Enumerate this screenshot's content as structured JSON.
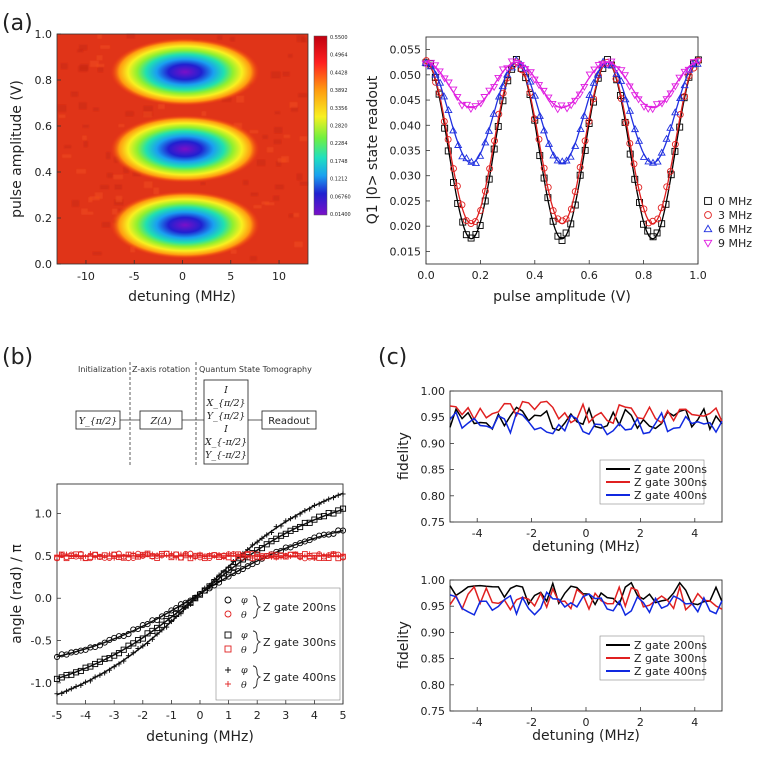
{
  "panel_labels": {
    "a": "(a)",
    "b": "(b)",
    "c": "(c)"
  },
  "colorbar_ticks": [
    "0.5500",
    "0.4964",
    "0.4428",
    "0.3892",
    "0.3356",
    "0.2820",
    "0.2284",
    "0.1748",
    "0.1212",
    "0.06760",
    "0.01400"
  ],
  "circuit": {
    "stage_labels": [
      "Initialization",
      "Z-axis rotation",
      "Quantum State Tomography"
    ],
    "init_gate": "Y_{π/2}",
    "z_gate": "Z(Δ)",
    "tomo_ops": [
      "I",
      "X_{π/2}",
      "Y_{π/2}",
      "I",
      "X_{-π/2}",
      "Y_{-π/2}"
    ],
    "readout": "Readout"
  },
  "chart_data": [
    {
      "id": "a-left",
      "type": "heatmap",
      "xlabel": "detuning (MHz)",
      "ylabel": "pulse amplitude (V)",
      "xlim": [
        -13,
        13
      ],
      "ylim": [
        0,
        1
      ],
      "xticks": [
        "-10",
        "-5",
        "0",
        "5",
        "10"
      ],
      "yticks": [
        "0.0",
        "0.2",
        "0.4",
        "0.6",
        "0.8",
        "1.0"
      ],
      "color_range": [
        0.014,
        0.55
      ],
      "minima": [
        {
          "x": 0,
          "y": 0.167,
          "value": 0.014
        },
        {
          "x": 0,
          "y": 0.5,
          "value": 0.014
        },
        {
          "x": 0,
          "y": 0.833,
          "value": 0.014
        }
      ]
    },
    {
      "id": "a-right",
      "type": "scatter",
      "xlabel": "pulse amplitude (V)",
      "ylabel": "Q1 |0> state readout",
      "xlim": [
        0,
        1
      ],
      "ylim": [
        0.0125,
        0.0575
      ],
      "xticks": [
        "0.0",
        "0.2",
        "0.4",
        "0.6",
        "0.8",
        "1.0"
      ],
      "yticks": [
        "0.015",
        "0.020",
        "0.025",
        "0.030",
        "0.035",
        "0.040",
        "0.045",
        "0.050",
        "0.055"
      ],
      "legend": "right",
      "series": [
        {
          "name": "0 MHz",
          "marker": "square",
          "color": "#000000",
          "max": 0.0525,
          "min": 0.0175
        },
        {
          "name": "3 MHz",
          "marker": "circle",
          "color": "#e02020",
          "max": 0.0525,
          "min": 0.0205
        },
        {
          "name": "6 MHz",
          "marker": "triangle-up",
          "color": "#2030e0",
          "max": 0.0525,
          "min": 0.0325
        },
        {
          "name": "9 MHz",
          "marker": "triangle-down",
          "color": "#e020e0",
          "max": 0.0525,
          "min": 0.0435
        }
      ]
    },
    {
      "id": "b",
      "type": "line",
      "xlabel": "detuning (MHz)",
      "ylabel": "angle (rad) / π",
      "xlim": [
        -5,
        5
      ],
      "ylim": [
        -1.25,
        1.35
      ],
      "xticks": [
        "-5",
        "-4",
        "-3",
        "-2",
        "-1",
        "0",
        "1",
        "2",
        "3",
        "4",
        "5"
      ],
      "yticks": [
        "-1.0",
        "-0.5",
        "0.0",
        "0.5",
        "1.0"
      ],
      "series": [
        {
          "name": "φ",
          "gate": "Z gate 200ns",
          "marker": "circle",
          "color": "#000000",
          "endpoint": 0.8,
          "start": -0.69
        },
        {
          "name": "θ",
          "gate": "Z gate 200ns",
          "marker": "circle",
          "color": "#e02020",
          "value": 0.5
        },
        {
          "name": "φ",
          "gate": "Z gate 300ns",
          "marker": "square",
          "color": "#000000",
          "endpoint": 1.05,
          "start": -0.95
        },
        {
          "name": "θ",
          "gate": "Z gate 300ns",
          "marker": "square",
          "color": "#e02020",
          "value": 0.5
        },
        {
          "name": "φ",
          "gate": "Z gate 400ns",
          "marker": "plus",
          "color": "#000000",
          "endpoint": 1.24,
          "start": -1.14
        },
        {
          "name": "θ",
          "gate": "Z gate 400ns",
          "marker": "plus",
          "color": "#e02020",
          "value": 0.5
        }
      ],
      "legend_symbols": {
        "phi": "φ",
        "theta": "θ"
      }
    },
    {
      "id": "c-top",
      "type": "line",
      "xlabel": "detuning (MHz)",
      "ylabel": "fidelity",
      "xlim": [
        -5,
        5
      ],
      "ylim": [
        0.75,
        1.0
      ],
      "xticks": [
        "-4",
        "-2",
        "0",
        "2",
        "4"
      ],
      "yticks": [
        "0.75",
        "0.80",
        "0.85",
        "0.90",
        "0.95",
        "1.00"
      ],
      "series": [
        {
          "name": "Z gate 200ns",
          "color": "#000000",
          "mean": 0.947
        },
        {
          "name": "Z gate 300ns",
          "color": "#e02020",
          "mean": 0.96
        },
        {
          "name": "Z gate 400ns",
          "color": "#1028e0",
          "mean": 0.938
        }
      ]
    },
    {
      "id": "c-bottom",
      "type": "line",
      "xlabel": "detuning (MHz)",
      "ylabel": "fidelity",
      "xlim": [
        -5,
        5
      ],
      "ylim": [
        0.75,
        1.0
      ],
      "xticks": [
        "-4",
        "-2",
        "0",
        "2",
        "4"
      ],
      "yticks": [
        "0.75",
        "0.80",
        "0.85",
        "0.90",
        "0.95",
        "1.00"
      ],
      "series": [
        {
          "name": "Z gate 200ns",
          "color": "#000000",
          "mean": 0.975
        },
        {
          "name": "Z gate 300ns",
          "color": "#e02020",
          "mean": 0.965
        },
        {
          "name": "Z gate 400ns",
          "color": "#1028e0",
          "mean": 0.955
        }
      ]
    }
  ]
}
